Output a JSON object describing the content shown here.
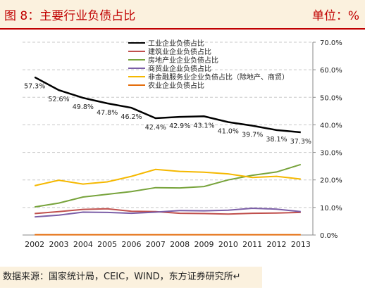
{
  "header": {
    "title": "图 8：主要行业负债占比",
    "unit": "单位：%"
  },
  "source": "数据来源：国家统计局，CEIC，WIND，东方证券研究所↵",
  "chart_data": {
    "type": "line",
    "x": [
      "2002",
      "2003",
      "2004",
      "2005",
      "2006",
      "2007",
      "2008",
      "2009",
      "2010",
      "2011",
      "2012",
      "2013"
    ],
    "ylim": [
      0,
      70
    ],
    "yticks": [
      "0.0%",
      "10.0%",
      "20.0%",
      "30.0%",
      "40.0%",
      "50.0%",
      "60.0%",
      "70.0%"
    ],
    "ytick_values": [
      0,
      10,
      20,
      30,
      40,
      50,
      60,
      70
    ],
    "legend_position": "top",
    "series": [
      {
        "name": "工业企业负债占比",
        "color": "#000000",
        "values": [
          57.3,
          52.6,
          49.8,
          47.8,
          46.2,
          42.4,
          42.9,
          43.1,
          41.0,
          39.7,
          38.1,
          37.3
        ],
        "labels": [
          "57.3%",
          "52.6%",
          "49.8%",
          "47.8%",
          "46.2%",
          "42.4%",
          "42.9%",
          "43.1%",
          "41.0%",
          "39.7%",
          "38.1%",
          "37.3%"
        ]
      },
      {
        "name": "建筑业企业负债占比",
        "color": "#c0504d",
        "values": [
          7.8,
          8.5,
          9.3,
          9.5,
          8.6,
          8.5,
          7.9,
          7.8,
          7.6,
          7.9,
          8.0,
          8.2
        ]
      },
      {
        "name": "房地产业企业负债占比",
        "color": "#77a33b",
        "values": [
          10.2,
          11.6,
          13.8,
          14.8,
          15.8,
          17.2,
          17.1,
          17.6,
          20.0,
          21.7,
          22.9,
          25.6
        ]
      },
      {
        "name": "商贸业企业负债占比",
        "color": "#7b5ea7",
        "values": [
          6.6,
          7.2,
          8.3,
          8.2,
          7.9,
          8.3,
          8.9,
          8.8,
          9.0,
          9.7,
          9.4,
          8.5
        ]
      },
      {
        "name": "非金融服务业企业负债占比（除地产、商贸）",
        "color": "#f5b800",
        "values": [
          17.9,
          19.9,
          18.5,
          19.3,
          21.3,
          23.8,
          23.1,
          22.8,
          22.2,
          20.9,
          21.3,
          20.3
        ]
      },
      {
        "name": "农业企业负债占比",
        "color": "#e46c0a",
        "values": [
          0.1,
          0.1,
          0.1,
          0.1,
          0.1,
          0.1,
          0.1,
          0.1,
          0.1,
          0.1,
          0.1,
          0.1
        ]
      }
    ]
  }
}
